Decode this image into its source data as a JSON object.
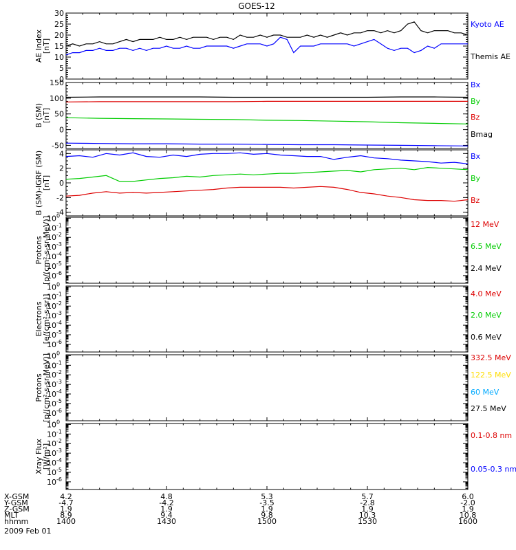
{
  "title": "GOES-12",
  "date_label": "2009 Feb 01",
  "panels": [
    {
      "id": "ae",
      "ylabel": [
        "AE Index",
        "[nT]"
      ],
      "scale": "linear",
      "ylim": [
        0,
        30
      ],
      "ticks": [
        0,
        5,
        10,
        15,
        20,
        25,
        30
      ],
      "minor_step": 1,
      "legend": [
        {
          "name": "Kyoto AE",
          "color": "#0000ff"
        },
        {
          "name": "Themis AE",
          "color": "#000000"
        }
      ]
    },
    {
      "id": "b_sm",
      "ylabel": [
        "B (SM)",
        "[nT]"
      ],
      "scale": "linear",
      "ylim": [
        -60,
        150
      ],
      "ticks": [
        -50,
        0,
        50,
        100,
        150
      ],
      "minor_step": 10,
      "legend": [
        {
          "name": "Bx",
          "color": "#0000ff"
        },
        {
          "name": "By",
          "color": "#00cc00"
        },
        {
          "name": "Bz",
          "color": "#dd0000"
        },
        {
          "name": "Bmag",
          "color": "#000000"
        }
      ]
    },
    {
      "id": "b_igrf",
      "ylabel": [
        "B (SM)-IGRF (SM)",
        "[nT]"
      ],
      "scale": "linear",
      "ylim": [
        -4.5,
        4.5
      ],
      "ticks": [
        -4,
        -2,
        0,
        2,
        4
      ],
      "minor_step": 0.5,
      "legend": [
        {
          "name": "Bx",
          "color": "#0000ff"
        },
        {
          "name": "By",
          "color": "#00cc00"
        },
        {
          "name": "Bz",
          "color": "#dd0000"
        }
      ]
    },
    {
      "id": "protons_low",
      "ylabel": [
        "Protons",
        "[p/(cm²-s-sr-MeV)]"
      ],
      "scale": "log",
      "ylim_exp": [
        -6.8,
        0.1
      ],
      "ticks_exp": [
        -6,
        -5,
        -4,
        -3,
        -2,
        -1,
        0
      ],
      "legend": [
        {
          "name": "12 MeV",
          "color": "#dd0000"
        },
        {
          "name": "6.5 MeV",
          "color": "#00cc00"
        },
        {
          "name": "2.4 MeV",
          "color": "#000000"
        }
      ]
    },
    {
      "id": "electrons",
      "ylabel": [
        "Electrons",
        "[e/(cm²-s-sr)]"
      ],
      "scale": "log",
      "ylim_exp": [
        -6.8,
        0.1
      ],
      "ticks_exp": [
        -6,
        -5,
        -4,
        -3,
        -2,
        -1,
        0
      ],
      "legend": [
        {
          "name": "4.0 MeV",
          "color": "#dd0000"
        },
        {
          "name": "2.0 MeV",
          "color": "#00cc00"
        },
        {
          "name": "0.6 MeV",
          "color": "#000000"
        }
      ]
    },
    {
      "id": "protons_high",
      "ylabel": [
        "Protons",
        "[p/(cm²-s-sr-MeV)]"
      ],
      "scale": "log",
      "ylim_exp": [
        -6.8,
        0.1
      ],
      "ticks_exp": [
        -6,
        -5,
        -4,
        -3,
        -2,
        -1,
        0
      ],
      "legend": [
        {
          "name": "332.5 MeV",
          "color": "#dd0000"
        },
        {
          "name": "122.5 MeV",
          "color": "#ffdd00"
        },
        {
          "name": "60 MeV",
          "color": "#00aaff"
        },
        {
          "name": "27.5 MeV",
          "color": "#000000"
        }
      ]
    },
    {
      "id": "xray",
      "ylabel": [
        "Xray Flux",
        "[W/m²]"
      ],
      "scale": "log",
      "ylim_exp": [
        -6.8,
        0.1
      ],
      "ticks_exp": [
        -6,
        -5,
        -4,
        -3,
        -2,
        -1,
        0
      ],
      "legend": [
        {
          "name": "0.1-0.8 nm",
          "color": "#dd0000"
        },
        {
          "name": "0.05-0.3 nm",
          "color": "#0000ff"
        }
      ]
    }
  ],
  "chart_data": {
    "type": "line",
    "title": "GOES-12",
    "x_range_hhmm": [
      1400,
      1600
    ],
    "x_labels": {
      "row_titles": [
        "X-GSM",
        "Y-GSM",
        "Z-GSM",
        "MLT",
        "hhmm"
      ],
      "columns": [
        [
          "4.2",
          "-4.7",
          "1.9",
          "8.9",
          "1400"
        ],
        [
          "4.8",
          "-4.2",
          "1.9",
          "9.4",
          "1430"
        ],
        [
          "5.3",
          "-3.5",
          "1.9",
          "9.8",
          "1500"
        ],
        [
          "5.7",
          "-2.8",
          "1.9",
          "10.3",
          "1530"
        ],
        [
          "6.0",
          "-2.0",
          "1.9",
          "10.8",
          "1600"
        ]
      ]
    },
    "series": [
      {
        "panel": 0,
        "name": "Themis AE",
        "color": "#000000",
        "x": [
          0,
          2,
          4,
          6,
          8,
          10,
          12,
          14,
          16,
          18,
          20,
          22,
          24,
          26,
          28,
          30,
          32,
          34,
          36,
          38,
          40,
          42,
          44,
          46,
          48,
          50,
          52,
          54,
          56,
          58,
          60,
          62,
          64,
          66,
          68,
          70,
          72,
          74,
          76,
          78,
          80,
          82,
          84,
          86,
          88,
          90,
          92,
          94,
          96,
          98,
          100,
          102,
          104,
          106,
          108,
          110,
          112,
          114,
          116,
          118,
          120
        ],
        "y": [
          15,
          16,
          15,
          16,
          16,
          17,
          16,
          16,
          17,
          18,
          17,
          18,
          18,
          18,
          19,
          18,
          18,
          19,
          18,
          19,
          19,
          19,
          18,
          19,
          19,
          18,
          20,
          19,
          19,
          20,
          19,
          20,
          20,
          19,
          19,
          19,
          20,
          19,
          20,
          19,
          20,
          21,
          20,
          21,
          21,
          22,
          22,
          21,
          22,
          21,
          22,
          25,
          26,
          22,
          21,
          22,
          22,
          22,
          21,
          21,
          20
        ]
      },
      {
        "panel": 0,
        "name": "Kyoto AE",
        "color": "#0000ff",
        "x": [
          0,
          2,
          4,
          6,
          8,
          10,
          12,
          14,
          16,
          18,
          20,
          22,
          24,
          26,
          28,
          30,
          32,
          34,
          36,
          38,
          40,
          42,
          44,
          46,
          48,
          50,
          52,
          54,
          56,
          58,
          60,
          62,
          64,
          66,
          68,
          70,
          72,
          74,
          76,
          78,
          80,
          82,
          84,
          86,
          88,
          90,
          92,
          94,
          96,
          98,
          100,
          102,
          104,
          106,
          108,
          110,
          112,
          114,
          116,
          118,
          120
        ],
        "y": [
          11,
          12,
          12,
          13,
          13,
          14,
          13,
          13,
          14,
          14,
          13,
          14,
          13,
          14,
          14,
          15,
          14,
          14,
          15,
          14,
          14,
          15,
          15,
          15,
          15,
          14,
          15,
          16,
          16,
          16,
          15,
          16,
          19,
          18,
          12,
          15,
          15,
          15,
          16,
          16,
          16,
          16,
          16,
          15,
          16,
          17,
          18,
          16,
          14,
          13,
          14,
          14,
          12,
          13,
          15,
          14,
          16,
          16,
          16,
          16,
          16
        ]
      },
      {
        "panel": 1,
        "name": "Bmag",
        "color": "#000000",
        "x": [
          0,
          10,
          20,
          30,
          40,
          50,
          60,
          70,
          80,
          90,
          100,
          110,
          120
        ],
        "y": [
          103,
          104,
          104,
          104,
          104,
          103,
          103,
          103,
          103,
          103,
          104,
          104,
          103
        ]
      },
      {
        "panel": 1,
        "name": "Bz",
        "color": "#dd0000",
        "x": [
          0,
          10,
          20,
          30,
          40,
          50,
          60,
          70,
          80,
          90,
          100,
          110,
          120
        ],
        "y": [
          88,
          89,
          89,
          89,
          89,
          89,
          90,
          90,
          90,
          90,
          90,
          90,
          90
        ]
      },
      {
        "panel": 1,
        "name": "By",
        "color": "#00cc00",
        "x": [
          0,
          10,
          20,
          30,
          40,
          50,
          60,
          70,
          80,
          90,
          100,
          110,
          120
        ],
        "y": [
          38,
          36,
          35,
          34,
          33,
          32,
          30,
          29,
          27,
          25,
          22,
          20,
          18
        ]
      },
      {
        "panel": 1,
        "name": "Bx",
        "color": "#0000ff",
        "x": [
          0,
          10,
          20,
          30,
          40,
          50,
          60,
          70,
          80,
          90,
          100,
          110,
          120
        ],
        "y": [
          -43,
          -44,
          -45,
          -45,
          -46,
          -46,
          -47,
          -48,
          -48,
          -49,
          -50,
          -51,
          -52
        ]
      },
      {
        "panel": 2,
        "name": "Bx",
        "color": "#0000ff",
        "x": [
          0,
          4,
          8,
          12,
          16,
          20,
          24,
          28,
          32,
          36,
          40,
          44,
          48,
          52,
          56,
          60,
          64,
          68,
          72,
          76,
          80,
          84,
          88,
          92,
          96,
          100,
          104,
          108,
          112,
          116,
          120
        ],
        "y": [
          3.6,
          3.7,
          3.5,
          4.0,
          3.8,
          4.1,
          3.6,
          3.5,
          3.8,
          3.6,
          3.9,
          4.0,
          4.0,
          4.1,
          3.9,
          4.0,
          3.8,
          3.7,
          3.6,
          3.6,
          3.2,
          3.5,
          3.7,
          3.4,
          3.3,
          3.1,
          3.0,
          2.9,
          2.7,
          2.8,
          2.6
        ]
      },
      {
        "panel": 2,
        "name": "By",
        "color": "#00cc00",
        "x": [
          0,
          4,
          8,
          12,
          16,
          20,
          24,
          28,
          32,
          36,
          40,
          44,
          48,
          52,
          56,
          60,
          64,
          68,
          72,
          76,
          80,
          84,
          88,
          92,
          96,
          100,
          104,
          108,
          112,
          116,
          120
        ],
        "y": [
          0.5,
          0.6,
          0.8,
          1.0,
          0.2,
          0.2,
          0.4,
          0.6,
          0.7,
          0.9,
          0.8,
          1.0,
          1.1,
          1.2,
          1.1,
          1.2,
          1.3,
          1.3,
          1.4,
          1.5,
          1.6,
          1.7,
          1.5,
          1.8,
          1.9,
          2.0,
          1.8,
          2.1,
          2.0,
          1.9,
          1.8
        ]
      },
      {
        "panel": 2,
        "name": "Bz",
        "color": "#dd0000",
        "x": [
          0,
          4,
          8,
          12,
          16,
          20,
          24,
          28,
          32,
          36,
          40,
          44,
          48,
          52,
          56,
          60,
          64,
          68,
          72,
          76,
          80,
          84,
          88,
          92,
          96,
          100,
          104,
          108,
          112,
          116,
          120
        ],
        "y": [
          -1.8,
          -1.7,
          -1.4,
          -1.2,
          -1.4,
          -1.3,
          -1.4,
          -1.3,
          -1.2,
          -1.1,
          -1.0,
          -0.9,
          -0.7,
          -0.6,
          -0.6,
          -0.6,
          -0.6,
          -0.7,
          -0.6,
          -0.5,
          -0.6,
          -0.9,
          -1.3,
          -1.5,
          -1.8,
          -2.0,
          -2.3,
          -2.4,
          -2.4,
          -2.5,
          -2.3
        ]
      }
    ]
  }
}
